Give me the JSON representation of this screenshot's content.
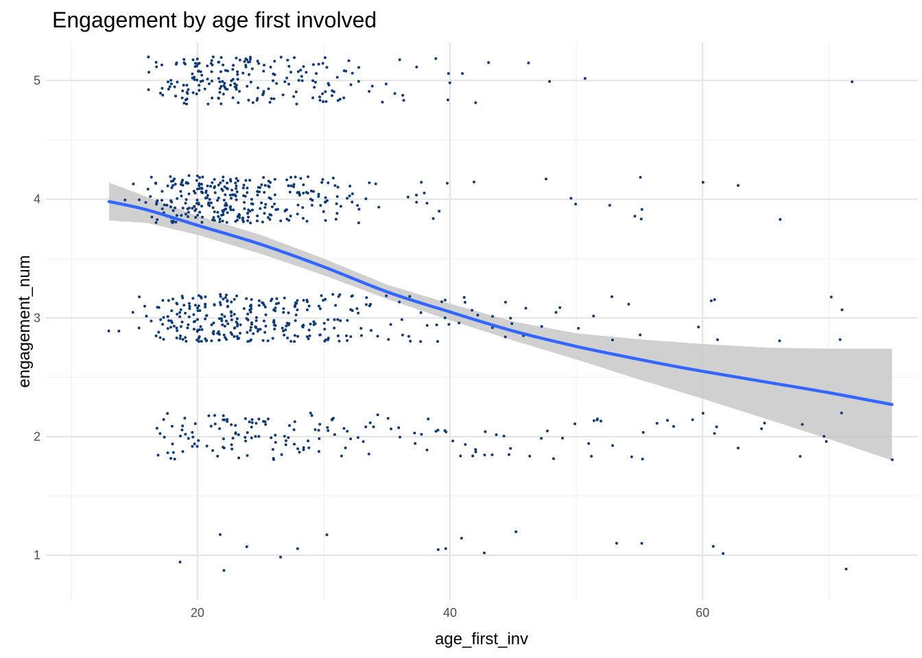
{
  "chart_data": {
    "type": "scatter",
    "title": "Engagement by age first involved",
    "xlabel": "age_first_inv",
    "ylabel": "engagement_num",
    "xlim": [
      8,
      77
    ],
    "ylim": [
      0.62,
      5.32
    ],
    "x_ticks": [
      20,
      40,
      60
    ],
    "y_ticks": [
      1,
      2,
      3,
      4,
      5
    ],
    "grid": true,
    "legend": "none",
    "colors": {
      "points": "#0f3a78",
      "smooth_line": "#3366ff",
      "confidence_band": "#c8c8c8",
      "grid_major": "#e3e3e3",
      "grid_minor": "#f0f0f0"
    },
    "jitter": 0.2,
    "point_groups": [
      {
        "y": 5,
        "ages": [
          [
            16,
            3
          ],
          [
            17,
            6
          ],
          [
            18,
            10
          ],
          [
            19,
            14
          ],
          [
            20,
            22
          ],
          [
            21,
            12
          ],
          [
            22,
            22
          ],
          [
            23,
            18
          ],
          [
            24,
            16
          ],
          [
            25,
            10
          ],
          [
            26,
            10
          ],
          [
            27,
            8
          ],
          [
            28,
            10
          ],
          [
            29,
            7
          ],
          [
            30,
            12
          ],
          [
            31,
            6
          ],
          [
            32,
            6
          ],
          [
            33,
            2
          ],
          [
            34,
            2
          ],
          [
            35,
            2
          ],
          [
            36,
            4
          ],
          [
            37,
            1
          ],
          [
            39,
            1
          ],
          [
            40,
            3
          ],
          [
            41,
            1
          ],
          [
            42,
            1
          ],
          [
            43,
            1
          ],
          [
            46,
            1
          ],
          [
            48,
            1
          ],
          [
            51,
            1
          ],
          [
            72,
            1
          ]
        ]
      },
      {
        "y": 4,
        "ages": [
          [
            14,
            1
          ],
          [
            15,
            2
          ],
          [
            16,
            5
          ],
          [
            17,
            12
          ],
          [
            18,
            24
          ],
          [
            19,
            22
          ],
          [
            20,
            30
          ],
          [
            21,
            22
          ],
          [
            22,
            30
          ],
          [
            23,
            26
          ],
          [
            24,
            24
          ],
          [
            25,
            18
          ],
          [
            26,
            16
          ],
          [
            27,
            12
          ],
          [
            28,
            14
          ],
          [
            29,
            9
          ],
          [
            30,
            12
          ],
          [
            31,
            8
          ],
          [
            32,
            5
          ],
          [
            33,
            4
          ],
          [
            34,
            3
          ],
          [
            37,
            3
          ],
          [
            38,
            3
          ],
          [
            39,
            2
          ],
          [
            40,
            1
          ],
          [
            42,
            1
          ],
          [
            48,
            1
          ],
          [
            50,
            2
          ],
          [
            53,
            1
          ],
          [
            55,
            4
          ],
          [
            60,
            1
          ],
          [
            63,
            1
          ],
          [
            66,
            1
          ]
        ]
      },
      {
        "y": 3,
        "ages": [
          [
            13,
            1
          ],
          [
            14,
            1
          ],
          [
            15,
            3
          ],
          [
            16,
            3
          ],
          [
            17,
            10
          ],
          [
            18,
            16
          ],
          [
            19,
            20
          ],
          [
            20,
            24
          ],
          [
            21,
            18
          ],
          [
            22,
            28
          ],
          [
            23,
            22
          ],
          [
            24,
            22
          ],
          [
            25,
            18
          ],
          [
            26,
            16
          ],
          [
            27,
            14
          ],
          [
            28,
            16
          ],
          [
            29,
            12
          ],
          [
            30,
            14
          ],
          [
            31,
            10
          ],
          [
            32,
            8
          ],
          [
            33,
            6
          ],
          [
            34,
            4
          ],
          [
            35,
            3
          ],
          [
            36,
            3
          ],
          [
            37,
            3
          ],
          [
            38,
            3
          ],
          [
            39,
            3
          ],
          [
            40,
            3
          ],
          [
            41,
            3
          ],
          [
            42,
            2
          ],
          [
            43,
            2
          ],
          [
            44,
            2
          ],
          [
            45,
            2
          ],
          [
            46,
            2
          ],
          [
            47,
            1
          ],
          [
            48,
            1
          ],
          [
            49,
            1
          ],
          [
            50,
            1
          ],
          [
            51,
            1
          ],
          [
            53,
            2
          ],
          [
            54,
            1
          ],
          [
            55,
            1
          ],
          [
            60,
            1
          ],
          [
            61,
            3
          ],
          [
            66,
            1
          ],
          [
            70,
            1
          ],
          [
            71,
            2
          ]
        ]
      },
      {
        "y": 2,
        "ages": [
          [
            17,
            5
          ],
          [
            18,
            7
          ],
          [
            19,
            7
          ],
          [
            20,
            7
          ],
          [
            21,
            6
          ],
          [
            22,
            10
          ],
          [
            23,
            9
          ],
          [
            24,
            10
          ],
          [
            25,
            7
          ],
          [
            26,
            7
          ],
          [
            27,
            6
          ],
          [
            28,
            7
          ],
          [
            29,
            5
          ],
          [
            30,
            6
          ],
          [
            31,
            5
          ],
          [
            32,
            4
          ],
          [
            33,
            3
          ],
          [
            34,
            4
          ],
          [
            35,
            2
          ],
          [
            36,
            2
          ],
          [
            37,
            2
          ],
          [
            38,
            3
          ],
          [
            39,
            2
          ],
          [
            40,
            3
          ],
          [
            41,
            2
          ],
          [
            42,
            3
          ],
          [
            43,
            3
          ],
          [
            44,
            2
          ],
          [
            45,
            2
          ],
          [
            46,
            1
          ],
          [
            47,
            1
          ],
          [
            48,
            2
          ],
          [
            49,
            1
          ],
          [
            50,
            1
          ],
          [
            51,
            3
          ],
          [
            52,
            3
          ],
          [
            53,
            1
          ],
          [
            54,
            1
          ],
          [
            55,
            2
          ],
          [
            56,
            1
          ],
          [
            57,
            1
          ],
          [
            58,
            1
          ],
          [
            59,
            1
          ],
          [
            60,
            1
          ],
          [
            61,
            2
          ],
          [
            63,
            1
          ],
          [
            65,
            2
          ],
          [
            68,
            2
          ],
          [
            70,
            2
          ],
          [
            71,
            1
          ],
          [
            75,
            1
          ]
        ]
      },
      {
        "y": 1,
        "ages": [
          [
            19,
            1
          ],
          [
            22,
            2
          ],
          [
            24,
            1
          ],
          [
            27,
            1
          ],
          [
            28,
            1
          ],
          [
            30,
            1
          ],
          [
            39,
            1
          ],
          [
            40,
            1
          ],
          [
            41,
            1
          ],
          [
            43,
            1
          ],
          [
            45,
            1
          ],
          [
            53,
            1
          ],
          [
            55,
            1
          ],
          [
            61,
            1
          ],
          [
            62,
            1
          ],
          [
            71,
            1
          ]
        ]
      }
    ],
    "smooth": {
      "x": [
        13,
        16,
        20,
        25,
        30,
        35,
        40,
        45,
        50,
        55,
        60,
        65,
        70,
        75
      ],
      "y": [
        3.98,
        3.91,
        3.78,
        3.62,
        3.43,
        3.22,
        3.05,
        2.89,
        2.76,
        2.65,
        2.55,
        2.46,
        2.37,
        2.27
      ],
      "lower": [
        3.82,
        3.8,
        3.7,
        3.54,
        3.36,
        3.16,
        2.98,
        2.81,
        2.65,
        2.48,
        2.32,
        2.15,
        1.98,
        1.8
      ],
      "upper": [
        4.14,
        4.02,
        3.86,
        3.7,
        3.5,
        3.28,
        3.12,
        2.97,
        2.87,
        2.82,
        2.78,
        2.75,
        2.74,
        2.74
      ]
    }
  }
}
